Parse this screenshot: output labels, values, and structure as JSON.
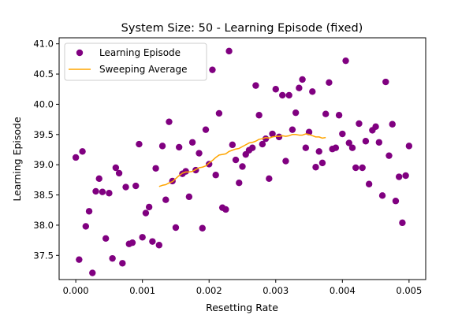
{
  "chart_data": {
    "type": "scatter",
    "title": "System Size: 50 - Learning Episode (fixed)",
    "xlabel": "Resetting Rate",
    "ylabel": "Learning Episode",
    "xlim": [
      -0.00025,
      0.00525
    ],
    "ylim": [
      37.1,
      41.1
    ],
    "xticks": [
      0.0,
      0.001,
      0.002,
      0.003,
      0.004,
      0.005
    ],
    "xtick_labels": [
      "0.000",
      "0.001",
      "0.002",
      "0.003",
      "0.004",
      "0.005"
    ],
    "yticks": [
      37.5,
      38.0,
      38.5,
      39.0,
      39.5,
      40.0,
      40.5,
      41.0
    ],
    "ytick_labels": [
      "37.5",
      "38.0",
      "38.5",
      "39.0",
      "39.5",
      "40.0",
      "40.5",
      "41.0"
    ],
    "grid": false,
    "legend_position": "top-left",
    "series": [
      {
        "name": "Learning Episode",
        "kind": "scatter",
        "color": "#800080",
        "points": [
          [
            0.0,
            39.12
          ],
          [
            5e-05,
            37.43
          ],
          [
            0.0001,
            39.22
          ],
          [
            0.00015,
            37.98
          ],
          [
            0.0002,
            38.23
          ],
          [
            0.00025,
            37.21
          ],
          [
            0.0003,
            38.56
          ],
          [
            0.00035,
            38.77
          ],
          [
            0.0004,
            38.55
          ],
          [
            0.00045,
            37.78
          ],
          [
            0.0005,
            38.53
          ],
          [
            0.00055,
            37.45
          ],
          [
            0.0006,
            38.95
          ],
          [
            0.00065,
            38.86
          ],
          [
            0.0007,
            37.37
          ],
          [
            0.00075,
            38.63
          ],
          [
            0.0008,
            37.69
          ],
          [
            0.00085,
            37.71
          ],
          [
            0.0009,
            38.65
          ],
          [
            0.00095,
            39.34
          ],
          [
            0.001,
            37.8
          ],
          [
            0.00105,
            38.2
          ],
          [
            0.0011,
            38.3
          ],
          [
            0.00115,
            37.73
          ],
          [
            0.0012,
            38.94
          ],
          [
            0.00125,
            37.67
          ],
          [
            0.0013,
            39.31
          ],
          [
            0.00135,
            38.42
          ],
          [
            0.0014,
            39.71
          ],
          [
            0.00145,
            38.73
          ],
          [
            0.0015,
            37.96
          ],
          [
            0.00155,
            39.29
          ],
          [
            0.0016,
            38.85
          ],
          [
            0.00165,
            38.89
          ],
          [
            0.0017,
            38.47
          ],
          [
            0.00175,
            39.37
          ],
          [
            0.0018,
            38.91
          ],
          [
            0.00185,
            39.19
          ],
          [
            0.0019,
            37.95
          ],
          [
            0.00195,
            39.58
          ],
          [
            0.002,
            39.01
          ],
          [
            0.00205,
            40.57
          ],
          [
            0.0021,
            38.83
          ],
          [
            0.00215,
            39.85
          ],
          [
            0.0022,
            38.29
          ],
          [
            0.00225,
            38.26
          ],
          [
            0.0023,
            40.88
          ],
          [
            0.00235,
            39.33
          ],
          [
            0.0024,
            39.08
          ],
          [
            0.00245,
            38.7
          ],
          [
            0.0025,
            38.97
          ],
          [
            0.00255,
            39.17
          ],
          [
            0.0026,
            39.24
          ],
          [
            0.00265,
            39.28
          ],
          [
            0.0027,
            40.31
          ],
          [
            0.00275,
            39.82
          ],
          [
            0.0028,
            39.34
          ],
          [
            0.00285,
            39.43
          ],
          [
            0.0029,
            38.77
          ],
          [
            0.00295,
            39.51
          ],
          [
            0.003,
            40.25
          ],
          [
            0.00305,
            39.46
          ],
          [
            0.0031,
            40.15
          ],
          [
            0.00315,
            39.06
          ],
          [
            0.0032,
            40.15
          ],
          [
            0.00325,
            39.58
          ],
          [
            0.0033,
            39.86
          ],
          [
            0.00335,
            40.27
          ],
          [
            0.0034,
            40.41
          ],
          [
            0.00345,
            39.28
          ],
          [
            0.0035,
            39.54
          ],
          [
            0.00355,
            40.21
          ],
          [
            0.0036,
            38.96
          ],
          [
            0.00365,
            39.22
          ],
          [
            0.0037,
            39.03
          ],
          [
            0.00375,
            39.84
          ],
          [
            0.0038,
            40.36
          ],
          [
            0.00385,
            39.26
          ],
          [
            0.0039,
            39.28
          ],
          [
            0.00395,
            39.82
          ],
          [
            0.004,
            39.51
          ],
          [
            0.00405,
            40.72
          ],
          [
            0.0041,
            39.36
          ],
          [
            0.00415,
            39.28
          ],
          [
            0.0042,
            38.95
          ],
          [
            0.00425,
            39.68
          ],
          [
            0.0043,
            38.95
          ],
          [
            0.00435,
            39.39
          ],
          [
            0.0044,
            38.68
          ],
          [
            0.00445,
            39.57
          ],
          [
            0.0045,
            39.63
          ],
          [
            0.00455,
            39.37
          ],
          [
            0.0046,
            38.49
          ],
          [
            0.00465,
            40.37
          ],
          [
            0.0047,
            39.15
          ],
          [
            0.00475,
            39.67
          ],
          [
            0.0048,
            38.4
          ],
          [
            0.00485,
            38.8
          ],
          [
            0.0049,
            38.04
          ],
          [
            0.00495,
            38.82
          ],
          [
            0.005,
            39.31
          ]
        ]
      },
      {
        "name": "Sweeping Average",
        "kind": "line",
        "color": "#ffa500",
        "points": [
          [
            0.00125,
            38.64
          ],
          [
            0.0013,
            38.66
          ],
          [
            0.00135,
            38.67
          ],
          [
            0.0014,
            38.7
          ],
          [
            0.00145,
            38.72
          ],
          [
            0.0015,
            38.77
          ],
          [
            0.00155,
            38.82
          ],
          [
            0.0016,
            38.86
          ],
          [
            0.00165,
            38.88
          ],
          [
            0.0017,
            38.88
          ],
          [
            0.00175,
            38.89
          ],
          [
            0.0018,
            38.92
          ],
          [
            0.00185,
            38.95
          ],
          [
            0.0019,
            38.96
          ],
          [
            0.00195,
            38.98
          ],
          [
            0.002,
            39.03
          ],
          [
            0.00205,
            39.07
          ],
          [
            0.0021,
            39.12
          ],
          [
            0.00215,
            39.16
          ],
          [
            0.0022,
            39.17
          ],
          [
            0.00225,
            39.18
          ],
          [
            0.0023,
            39.22
          ],
          [
            0.00235,
            39.24
          ],
          [
            0.0024,
            39.26
          ],
          [
            0.00245,
            39.27
          ],
          [
            0.0025,
            39.3
          ],
          [
            0.00255,
            39.33
          ],
          [
            0.0026,
            39.36
          ],
          [
            0.00265,
            39.37
          ],
          [
            0.0027,
            39.39
          ],
          [
            0.00275,
            39.42
          ],
          [
            0.0028,
            39.43
          ],
          [
            0.00285,
            39.45
          ],
          [
            0.0029,
            39.44
          ],
          [
            0.00295,
            39.46
          ],
          [
            0.003,
            39.47
          ],
          [
            0.00305,
            39.47
          ],
          [
            0.0031,
            39.48
          ],
          [
            0.00315,
            39.47
          ],
          [
            0.0032,
            39.48
          ],
          [
            0.00325,
            39.5
          ],
          [
            0.0033,
            39.5
          ],
          [
            0.00335,
            39.49
          ],
          [
            0.0034,
            39.49
          ],
          [
            0.00345,
            39.51
          ],
          [
            0.0035,
            39.5
          ],
          [
            0.00355,
            39.48
          ],
          [
            0.0036,
            39.46
          ],
          [
            0.00365,
            39.46
          ],
          [
            0.0037,
            39.44
          ],
          [
            0.00375,
            39.45
          ]
        ]
      }
    ]
  }
}
